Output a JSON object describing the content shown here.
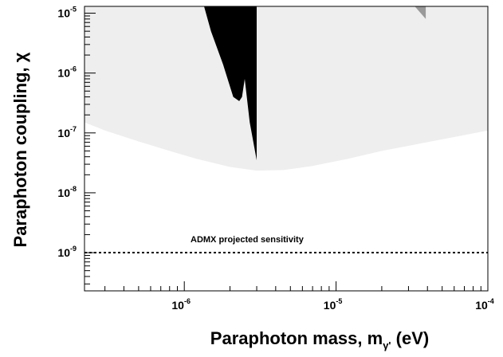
{
  "chart_data": {
    "type": "area",
    "title": "",
    "xlabel": "Paraphoton mass, m",
    "xlabel_sub": "γ'",
    "xlabel_unit": " (eV)",
    "ylabel": "Paraphoton coupling, χ",
    "xscale": "log",
    "yscale": "log",
    "xlim": [
      2.2e-07,
      0.0001
    ],
    "ylim": [
      2.3e-10,
      1.3e-05
    ],
    "grid": false,
    "x_ticks": [
      {
        "base": "10",
        "exp": "-6",
        "value": 1e-06
      },
      {
        "base": "10",
        "exp": "-5",
        "value": 1e-05
      },
      {
        "base": "10",
        "exp": "-4",
        "value": 0.0001
      }
    ],
    "y_ticks": [
      {
        "base": "10",
        "exp": "-9",
        "value": 1e-09
      },
      {
        "base": "10",
        "exp": "-8",
        "value": 1e-08
      },
      {
        "base": "10",
        "exp": "-7",
        "value": 1e-07
      },
      {
        "base": "10",
        "exp": "-6",
        "value": 1e-06
      },
      {
        "base": "10",
        "exp": "-5",
        "value": 1e-05
      }
    ],
    "series": [
      {
        "color": "#eeeeee",
        "boundary": {
          "x": [
            2.2e-07,
            3e-07,
            5e-07,
            8e-07,
            1.2e-06,
            2e-06,
            3e-06,
            4.5e-06,
            7e-06,
            1.2e-05,
            2e-05,
            4e-05,
            7e-05,
            0.0001
          ],
          "y": [
            1.5e-07,
            1.1e-07,
            7.2e-08,
            5e-08,
            3.7e-08,
            2.7e-08,
            2.35e-08,
            2.4e-08,
            2.8e-08,
            3.7e-08,
            5e-08,
            7e-08,
            9.2e-08,
            1.1e-07
          ]
        }
      },
      {
        "color": "#000000",
        "boundary": {
          "x": [
            1.35e-06,
            1.5e-06,
            1.8e-06,
            2.1e-06,
            2.3e-06,
            2.4e-06,
            2.5e-06,
            2.7e-06,
            3e-06,
            3e-06
          ],
          "y": [
            1.3e-05,
            5e-06,
            1.4e-06,
            4e-07,
            3.4e-07,
            4e-07,
            8e-07,
            1.5e-07,
            3.5e-08,
            1.3e-05
          ]
        }
      },
      {
        "color": "#999999",
        "boundary": {
          "x": [
            3.3e-05,
            3.9e-05,
            3.9e-05
          ],
          "y": [
            1.3e-05,
            8e-06,
            1.3e-05
          ]
        }
      }
    ],
    "reference_lines": [
      {
        "y": 1e-09,
        "style": "dotted",
        "label": "ADMX projected sensitivity"
      }
    ]
  }
}
